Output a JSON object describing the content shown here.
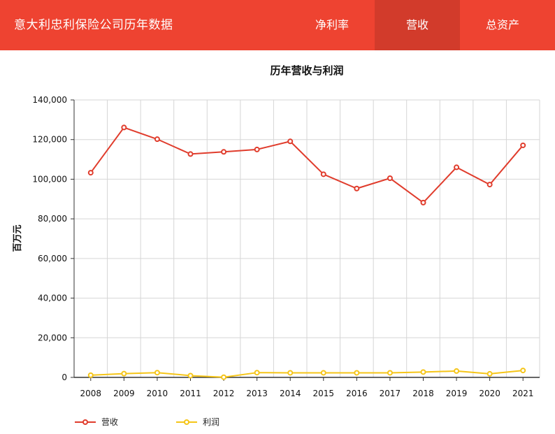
{
  "header": {
    "title": "意大利忠利保险公司历年数据",
    "tabs": [
      {
        "label": "净利率",
        "active": false
      },
      {
        "label": "营收",
        "active": true
      },
      {
        "label": "总资产",
        "active": false
      }
    ]
  },
  "colors": {
    "header_bg": "#ee4331",
    "tab_active_bg": "#d23b2b",
    "revenue_line": "#e03c2c",
    "profit_line": "#f5c518"
  },
  "chart_data": {
    "type": "line",
    "title": "历年营收与利润",
    "xlabel": "",
    "ylabel": "百万元",
    "categories": [
      "2008",
      "2009",
      "2010",
      "2011",
      "2012",
      "2013",
      "2014",
      "2015",
      "2016",
      "2017",
      "2018",
      "2019",
      "2020",
      "2021"
    ],
    "ylim": [
      0,
      140000
    ],
    "yticks": [
      0,
      20000,
      40000,
      60000,
      80000,
      100000,
      120000,
      140000
    ],
    "ytick_labels": [
      "0",
      "20,000",
      "40,000",
      "60,000",
      "80,000",
      "100,000",
      "120,000",
      "140,000"
    ],
    "grid": true,
    "legend_position": "bottom-left",
    "series": [
      {
        "name": "营收",
        "color": "#e03c2c",
        "values": [
          103300,
          126100,
          120200,
          112700,
          113800,
          115000,
          119100,
          102500,
          95300,
          100500,
          88200,
          106000,
          97300,
          117100
        ]
      },
      {
        "name": "利润",
        "color": "#f5c518",
        "values": [
          1100,
          1900,
          2400,
          900,
          100,
          2400,
          2300,
          2300,
          2300,
          2300,
          2700,
          3200,
          1800,
          3500
        ]
      }
    ]
  }
}
